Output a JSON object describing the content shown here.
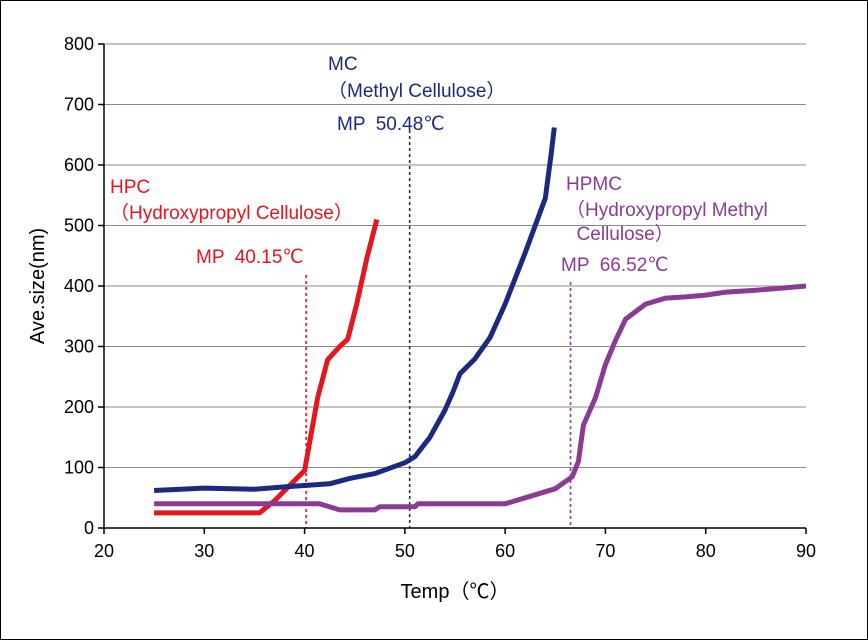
{
  "chart_data": {
    "type": "line",
    "xlabel": "Temp（℃）",
    "ylabel": "Ave.size(nm)",
    "xlim": [
      20,
      90
    ],
    "ylim": [
      0,
      800
    ],
    "xticks": [
      20,
      30,
      40,
      50,
      60,
      70,
      80,
      90
    ],
    "yticks": [
      0,
      100,
      200,
      300,
      400,
      500,
      600,
      700,
      800
    ],
    "grid": "horizontal",
    "legend": "none",
    "series": [
      {
        "key": "hpc",
        "color": "#e4161e",
        "label_lines": [
          "HPC",
          "（Hydroxypropyl Cellulose）"
        ],
        "mp_label": "MP  40.15℃",
        "mp": 40.15,
        "x": [
          25,
          30,
          35.5,
          37,
          38.5,
          40,
          41.3,
          42.3,
          43.5,
          44.3,
          45.2,
          46.2,
          47.2
        ],
        "y": [
          25,
          25,
          25,
          45,
          70,
          95,
          215,
          278,
          300,
          312,
          370,
          445,
          510
        ]
      },
      {
        "key": "mc",
        "color": "#1b2a80",
        "label_lines": [
          "MC",
          "（Methyl Cellulose）"
        ],
        "mp_label": "MP  50.48℃",
        "mp": 50.48,
        "x": [
          25,
          30,
          35,
          38,
          42.5,
          44.5,
          47,
          50,
          51,
          52.5,
          54,
          54.8,
          55.5,
          57,
          58.5,
          60,
          62,
          64,
          64.6,
          64.9
        ],
        "y": [
          62,
          66,
          64,
          68,
          73,
          82,
          90,
          108,
          118,
          150,
          195,
          225,
          255,
          280,
          315,
          370,
          455,
          545,
          620,
          662
        ]
      },
      {
        "key": "hpmc",
        "color": "#8c3b95",
        "label_lines": [
          "HPMC",
          "（Hydroxypropyl Methyl",
          "  Cellulose）"
        ],
        "mp_label": "MP  66.52℃",
        "mp": 66.52,
        "x": [
          25,
          30,
          35,
          41.5,
          43.5,
          47,
          47.5,
          51,
          51.3,
          60,
          62,
          65,
          66.7,
          67.3,
          67.8,
          69,
          70,
          71,
          72,
          74,
          76,
          78,
          80,
          82,
          85,
          88,
          90
        ],
        "y": [
          40,
          40,
          40,
          40,
          30,
          30,
          35,
          35,
          40,
          40,
          50,
          65,
          85,
          110,
          170,
          215,
          270,
          310,
          345,
          370,
          380,
          382,
          385,
          390,
          393,
          397,
          400
        ]
      }
    ]
  }
}
